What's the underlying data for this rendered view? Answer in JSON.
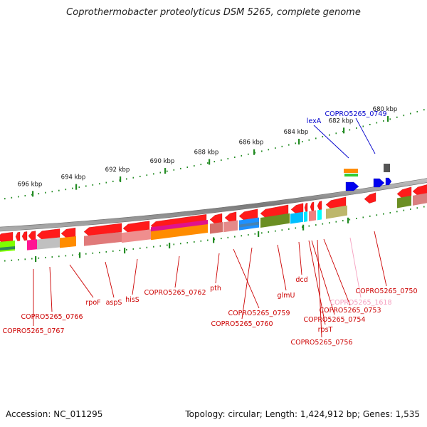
{
  "title": "Coprothermobacter proteolyticus DSM 5265, complete genome",
  "footer": {
    "accession": "Accession: NC_011295",
    "summary": "Topology: circular; Length: 1,424,912 bp; Genes: 1,535"
  },
  "scale_labels": [
    "696 kbp",
    "694 kbp",
    "692 kbp",
    "690 kbp",
    "688 kbp",
    "686 kbp",
    "684 kbp",
    "682 kbp",
    "680 kbp"
  ],
  "gene_labels_top": [
    "lexA",
    "COPRO5265_0749"
  ],
  "gene_labels_bottom": [
    "COPRO5265_0767",
    "COPRO5265_0766",
    "rpoF",
    "aspS",
    "hisS",
    "COPRO5265_0762",
    "pth",
    "COPRO5265_0759",
    "COPRO5265_0760",
    "glmU",
    "dcd",
    "COPRO5265_1618",
    "COPRO5265_0753",
    "COPRO5265_0754",
    "rpsT",
    "COPRO5265_0756",
    "COPRO5265_0750"
  ],
  "colors": {
    "gene_red": "#ff1a1a",
    "label_red": "#cc0000",
    "label_blue": "#0000cc",
    "label_pink": "#f5a0c0",
    "tick_green": "#228b22",
    "backbone": "#8c8c8c"
  }
}
